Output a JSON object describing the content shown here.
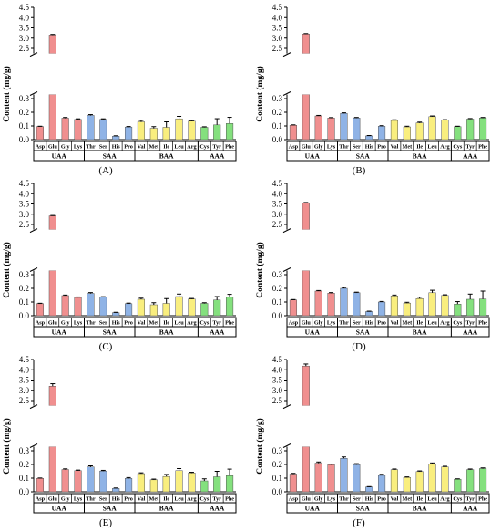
{
  "chart_data": [
    {
      "type": "bar",
      "panel_label": "(A)",
      "ylabel": "Content (mg/g)",
      "y_ticks_lower": [
        "0.0",
        "0.1",
        "0.2",
        "0.3"
      ],
      "y_ticks_upper": [
        "2.5",
        "3.0",
        "3.5",
        "4.0",
        "4.5"
      ],
      "ylim_lower": [
        0,
        0.33
      ],
      "ylim_upper": [
        2.25,
        4.5
      ],
      "axis_break": true,
      "categories": [
        "Asp",
        "Glu",
        "Gly",
        "Lys",
        "Thr",
        "Ser",
        "His",
        "Pro",
        "Val",
        "Met",
        "Ile",
        "Leu",
        "Arg",
        "Cys",
        "Tyr",
        "Phe"
      ],
      "groups": [
        {
          "label": "UAA",
          "count": 4,
          "color": "#f08f8f"
        },
        {
          "label": "SAA",
          "count": 4,
          "color": "#8fb3e6"
        },
        {
          "label": "BAA",
          "count": 5,
          "color": "#f9ee7e"
        },
        {
          "label": "AAA",
          "count": 3,
          "color": "#84e07e"
        }
      ],
      "values": [
        0.095,
        3.15,
        0.157,
        0.148,
        0.177,
        0.148,
        0.025,
        0.092,
        0.13,
        0.083,
        0.09,
        0.152,
        0.135,
        0.09,
        0.108,
        0.118
      ],
      "errors": [
        0.003,
        0.03,
        0.005,
        0.004,
        0.006,
        0.004,
        0.003,
        0.004,
        0.01,
        0.012,
        0.04,
        0.018,
        0.005,
        0.004,
        0.045,
        0.045
      ]
    },
    {
      "type": "bar",
      "panel_label": "(B)",
      "ylabel": "Content (mg/g)",
      "y_ticks_lower": [
        "0.0",
        "0.1",
        "0.2",
        "0.3"
      ],
      "y_ticks_upper": [
        "2.5",
        "3.0",
        "3.5",
        "4.0",
        "4.5"
      ],
      "ylim_lower": [
        0,
        0.33
      ],
      "ylim_upper": [
        2.25,
        4.5
      ],
      "axis_break": true,
      "categories": [
        "Asp",
        "Glu",
        "Gly",
        "Lys",
        "Thr",
        "Ser",
        "His",
        "Pro",
        "Val",
        "Met",
        "Ile",
        "Leu",
        "Arg",
        "Cys",
        "Tyr",
        "Phe"
      ],
      "groups": [
        {
          "label": "UAA",
          "count": 4,
          "color": "#f08f8f"
        },
        {
          "label": "SAA",
          "count": 4,
          "color": "#8fb3e6"
        },
        {
          "label": "BAA",
          "count": 5,
          "color": "#f9ee7e"
        },
        {
          "label": "AAA",
          "count": 3,
          "color": "#84e07e"
        }
      ],
      "values": [
        0.105,
        3.2,
        0.173,
        0.158,
        0.192,
        0.158,
        0.027,
        0.098,
        0.14,
        0.093,
        0.122,
        0.168,
        0.142,
        0.095,
        0.15,
        0.158
      ],
      "errors": [
        0.003,
        0.02,
        0.004,
        0.003,
        0.004,
        0.004,
        0.003,
        0.004,
        0.005,
        0.005,
        0.006,
        0.005,
        0.004,
        0.003,
        0.004,
        0.004
      ]
    },
    {
      "type": "bar",
      "panel_label": "(C)",
      "ylabel": "Content (mg/g)",
      "y_ticks_lower": [
        "0.0",
        "0.1",
        "0.2",
        "0.3"
      ],
      "y_ticks_upper": [
        "2.5",
        "3.0",
        "3.5",
        "4.0",
        "4.5"
      ],
      "ylim_lower": [
        0,
        0.33
      ],
      "ylim_upper": [
        2.25,
        4.5
      ],
      "axis_break": true,
      "categories": [
        "Asp",
        "Glu",
        "Gly",
        "Lys",
        "Thr",
        "Ser",
        "His",
        "Pro",
        "Val",
        "Met",
        "Ile",
        "Leu",
        "Arg",
        "Cys",
        "Tyr",
        "Phe"
      ],
      "groups": [
        {
          "label": "UAA",
          "count": 4,
          "color": "#f08f8f"
        },
        {
          "label": "SAA",
          "count": 4,
          "color": "#8fb3e6"
        },
        {
          "label": "BAA",
          "count": 5,
          "color": "#f9ee7e"
        },
        {
          "label": "AAA",
          "count": 3,
          "color": "#84e07e"
        }
      ],
      "values": [
        0.088,
        2.92,
        0.147,
        0.133,
        0.163,
        0.135,
        0.022,
        0.088,
        0.12,
        0.08,
        0.09,
        0.14,
        0.122,
        0.09,
        0.115,
        0.138
      ],
      "errors": [
        0.003,
        0.02,
        0.004,
        0.004,
        0.006,
        0.004,
        0.003,
        0.004,
        0.008,
        0.015,
        0.035,
        0.018,
        0.004,
        0.005,
        0.025,
        0.018
      ]
    },
    {
      "type": "bar",
      "panel_label": "(D)",
      "ylabel": "Content (mg/g)",
      "y_ticks_lower": [
        "0.0",
        "0.1",
        "0.2",
        "0.3"
      ],
      "y_ticks_upper": [
        "2.5",
        "3.0",
        "3.5",
        "4.0",
        "4.5"
      ],
      "ylim_lower": [
        0,
        0.33
      ],
      "ylim_upper": [
        2.25,
        4.5
      ],
      "axis_break": true,
      "categories": [
        "Asp",
        "Glu",
        "Gly",
        "Lys",
        "Thr",
        "Ser",
        "His",
        "Pro",
        "Val",
        "Met",
        "Ile",
        "Leu",
        "Arg",
        "Cys",
        "Tyr",
        "Phe"
      ],
      "groups": [
        {
          "label": "UAA",
          "count": 4,
          "color": "#f08f8f"
        },
        {
          "label": "SAA",
          "count": 4,
          "color": "#8fb3e6"
        },
        {
          "label": "BAA",
          "count": 5,
          "color": "#f9ee7e"
        },
        {
          "label": "AAA",
          "count": 3,
          "color": "#84e07e"
        }
      ],
      "values": [
        0.115,
        3.55,
        0.18,
        0.165,
        0.2,
        0.168,
        0.03,
        0.1,
        0.145,
        0.092,
        0.125,
        0.168,
        0.148,
        0.085,
        0.12,
        0.122
      ],
      "errors": [
        0.003,
        0.02,
        0.004,
        0.004,
        0.006,
        0.004,
        0.003,
        0.004,
        0.006,
        0.006,
        0.01,
        0.018,
        0.005,
        0.018,
        0.038,
        0.058
      ]
    },
    {
      "type": "bar",
      "panel_label": "(E)",
      "ylabel": "Content (mg/g)",
      "y_ticks_lower": [
        "0.0",
        "0.1",
        "0.2",
        "0.3"
      ],
      "y_ticks_upper": [
        "2.5",
        "3.0",
        "3.5",
        "4.0",
        "4.5"
      ],
      "ylim_lower": [
        0,
        0.33
      ],
      "ylim_upper": [
        2.25,
        4.5
      ],
      "axis_break": true,
      "categories": [
        "Asp",
        "Glu",
        "Gly",
        "Lys",
        "Thr",
        "Ser",
        "His",
        "Pro",
        "Val",
        "Met",
        "Ile",
        "Leu",
        "Arg",
        "Cys",
        "Tyr",
        "Phe"
      ],
      "groups": [
        {
          "label": "UAA",
          "count": 4,
          "color": "#f08f8f"
        },
        {
          "label": "SAA",
          "count": 4,
          "color": "#8fb3e6"
        },
        {
          "label": "BAA",
          "count": 5,
          "color": "#f9ee7e"
        },
        {
          "label": "AAA",
          "count": 3,
          "color": "#84e07e"
        }
      ],
      "values": [
        0.098,
        3.2,
        0.163,
        0.155,
        0.182,
        0.152,
        0.025,
        0.098,
        0.133,
        0.088,
        0.112,
        0.155,
        0.138,
        0.08,
        0.11,
        0.118
      ],
      "errors": [
        0.003,
        0.12,
        0.005,
        0.004,
        0.008,
        0.005,
        0.003,
        0.006,
        0.006,
        0.005,
        0.015,
        0.015,
        0.005,
        0.015,
        0.04,
        0.048
      ]
    },
    {
      "type": "bar",
      "panel_label": "(F)",
      "ylabel": "Content (mg/g)",
      "y_ticks_lower": [
        "0.0",
        "0.1",
        "0.2",
        "0.3"
      ],
      "y_ticks_upper": [
        "2.5",
        "3.0",
        "3.5",
        "4.0",
        "4.5"
      ],
      "ylim_lower": [
        0,
        0.33
      ],
      "ylim_upper": [
        2.25,
        4.5
      ],
      "axis_break": true,
      "categories": [
        "Asp",
        "Glu",
        "Gly",
        "Lys",
        "Thr",
        "Ser",
        "His",
        "Pro",
        "Val",
        "Met",
        "Ile",
        "Leu",
        "Arg",
        "Cys",
        "Tyr",
        "Phe"
      ],
      "groups": [
        {
          "label": "UAA",
          "count": 4,
          "color": "#f08f8f"
        },
        {
          "label": "SAA",
          "count": 4,
          "color": "#8fb3e6"
        },
        {
          "label": "BAA",
          "count": 5,
          "color": "#f9ee7e"
        },
        {
          "label": "AAA",
          "count": 3,
          "color": "#84e07e"
        }
      ],
      "values": [
        0.13,
        4.18,
        0.21,
        0.198,
        0.245,
        0.198,
        0.035,
        0.12,
        0.162,
        0.105,
        0.148,
        0.205,
        0.182,
        0.092,
        0.162,
        0.17
      ],
      "errors": [
        0.005,
        0.1,
        0.008,
        0.005,
        0.01,
        0.008,
        0.003,
        0.008,
        0.005,
        0.004,
        0.005,
        0.006,
        0.005,
        0.003,
        0.005,
        0.005
      ]
    }
  ]
}
